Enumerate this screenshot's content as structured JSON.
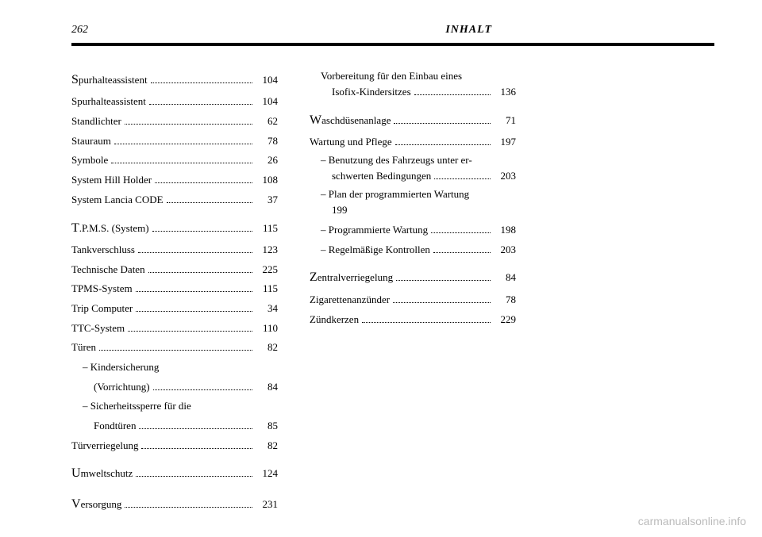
{
  "header": {
    "page_number": "262",
    "title": "INHALT"
  },
  "col1": [
    {
      "label_initial": "S",
      "label": "purhalteassistent",
      "page": "104"
    },
    {
      "label": "Spurhalteassistent",
      "page": "104"
    },
    {
      "label": "Standlichter",
      "page": "62"
    },
    {
      "label": "Stauraum",
      "page": "78"
    },
    {
      "label": "Symbole",
      "page": "26"
    },
    {
      "label": "System Hill Holder",
      "page": "108"
    },
    {
      "label": "System Lancia CODE",
      "page": "37"
    },
    {
      "gap": true
    },
    {
      "label_initial": "T",
      "label": ".P.M.S. (System)",
      "page": "115"
    },
    {
      "label": "Tankverschluss",
      "page": "123"
    },
    {
      "label": "Technische Daten",
      "page": "225"
    },
    {
      "label": "TPMS-System",
      "page": "115"
    },
    {
      "label": "Trip Computer",
      "page": "34"
    },
    {
      "label": "TTC-System",
      "page": "110"
    },
    {
      "label": "Türen",
      "page": "82"
    },
    {
      "label": "– Kindersicherung",
      "sub": true,
      "no_page": true
    },
    {
      "label": "(Vorrichtung)",
      "sub2": true,
      "page": "84"
    },
    {
      "label": "– Sicherheitssperre für die",
      "sub": true,
      "no_page": true
    },
    {
      "label": "Fondtüren",
      "sub2": true,
      "page": "85"
    },
    {
      "label": "Türverriegelung",
      "page": "82"
    },
    {
      "gap": true
    },
    {
      "label_initial": "U",
      "label": "mweltschutz",
      "page": "124"
    },
    {
      "gap": true
    },
    {
      "label_initial": "V",
      "label": "ersorgung",
      "page": "231"
    }
  ],
  "col2": [
    {
      "wrap": true,
      "line1": "Vorbereitung für den Einbau eines",
      "line2_label": "Isofix-Kindersitzes",
      "page": "136",
      "sub": true
    },
    {
      "gap": true
    },
    {
      "label_initial": "W",
      "label": "aschdüsenanlage",
      "page": "71"
    },
    {
      "label": "Wartung und Pflege",
      "page": "197"
    },
    {
      "wrap": true,
      "line1": "– Benutzung des Fahrzeugs unter er-",
      "line2_label": "schwerten Bedingungen",
      "page": "203",
      "sub": true
    },
    {
      "wrap": true,
      "line1": "– Plan der programmierten Wartung",
      "line2_label": "199",
      "no_page": true,
      "sub": true
    },
    {
      "label": "– Programmierte Wartung",
      "sub": true,
      "page": "198"
    },
    {
      "label": "– Regelmäßige Kontrollen",
      "sub": true,
      "page": "203"
    },
    {
      "gap": true
    },
    {
      "label_initial": "Z",
      "label": "entralverriegelung",
      "page": "84"
    },
    {
      "label": "Zigarettenanzünder",
      "page": "78"
    },
    {
      "label": "Zündkerzen",
      "page": "229"
    }
  ],
  "watermark": "carmanualsonline.info"
}
